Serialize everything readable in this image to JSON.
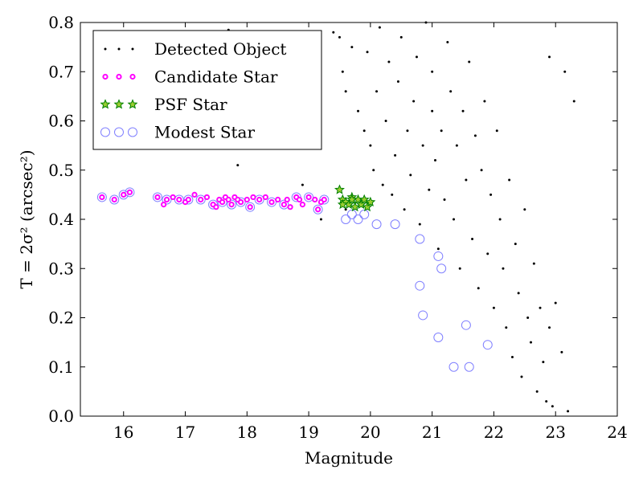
{
  "chart_data": {
    "type": "scatter",
    "xlabel": "Magnitude",
    "ylabel": "T = 2σ² (arcsec²)",
    "xlim": [
      15.3,
      24.0
    ],
    "ylim": [
      0.0,
      0.8
    ],
    "x_ticks": [
      "16",
      "17",
      "18",
      "19",
      "20",
      "21",
      "22",
      "23",
      "24"
    ],
    "y_ticks": [
      "0.0",
      "0.1",
      "0.2",
      "0.3",
      "0.4",
      "0.5",
      "0.6",
      "0.7",
      "0.8"
    ],
    "legend_position": "top-left",
    "grid": false,
    "series": [
      {
        "name": "Detected Object",
        "marker": "dot",
        "color": "#000000",
        "count_note": "dense field of faint objects spanning magnitude ~19.3–23.3, T ~0.0–0.8",
        "points": [
          [
            17.7,
            0.785
          ],
          [
            17.85,
            0.51
          ],
          [
            18.9,
            0.47
          ],
          [
            19.2,
            0.4
          ],
          [
            19.6,
            0.42
          ],
          [
            19.4,
            0.78
          ],
          [
            19.5,
            0.77
          ],
          [
            19.55,
            0.7
          ],
          [
            19.6,
            0.66
          ],
          [
            19.7,
            0.75
          ],
          [
            19.8,
            0.62
          ],
          [
            19.9,
            0.58
          ],
          [
            19.95,
            0.74
          ],
          [
            20.0,
            0.55
          ],
          [
            20.05,
            0.5
          ],
          [
            20.1,
            0.66
          ],
          [
            20.15,
            0.79
          ],
          [
            20.2,
            0.47
          ],
          [
            20.25,
            0.6
          ],
          [
            20.3,
            0.72
          ],
          [
            20.35,
            0.45
          ],
          [
            20.4,
            0.53
          ],
          [
            20.45,
            0.68
          ],
          [
            20.5,
            0.77
          ],
          [
            20.55,
            0.42
          ],
          [
            20.6,
            0.58
          ],
          [
            20.65,
            0.49
          ],
          [
            20.7,
            0.64
          ],
          [
            20.75,
            0.73
          ],
          [
            20.8,
            0.39
          ],
          [
            20.85,
            0.55
          ],
          [
            20.9,
            0.8
          ],
          [
            20.95,
            0.46
          ],
          [
            21.0,
            0.62
          ],
          [
            21.0,
            0.7
          ],
          [
            21.05,
            0.52
          ],
          [
            21.1,
            0.34
          ],
          [
            21.15,
            0.58
          ],
          [
            21.2,
            0.44
          ],
          [
            21.25,
            0.76
          ],
          [
            21.3,
            0.66
          ],
          [
            21.35,
            0.4
          ],
          [
            21.4,
            0.55
          ],
          [
            21.45,
            0.3
          ],
          [
            21.5,
            0.62
          ],
          [
            21.55,
            0.48
          ],
          [
            21.6,
            0.72
          ],
          [
            21.65,
            0.36
          ],
          [
            21.7,
            0.57
          ],
          [
            21.75,
            0.26
          ],
          [
            21.8,
            0.5
          ],
          [
            21.85,
            0.64
          ],
          [
            21.9,
            0.33
          ],
          [
            21.95,
            0.45
          ],
          [
            22.0,
            0.22
          ],
          [
            22.05,
            0.58
          ],
          [
            22.1,
            0.4
          ],
          [
            22.15,
            0.3
          ],
          [
            22.2,
            0.18
          ],
          [
            22.25,
            0.48
          ],
          [
            22.3,
            0.12
          ],
          [
            22.35,
            0.35
          ],
          [
            22.4,
            0.25
          ],
          [
            22.45,
            0.08
          ],
          [
            22.5,
            0.42
          ],
          [
            22.55,
            0.2
          ],
          [
            22.6,
            0.15
          ],
          [
            22.65,
            0.31
          ],
          [
            22.7,
            0.05
          ],
          [
            22.75,
            0.22
          ],
          [
            22.8,
            0.11
          ],
          [
            22.85,
            0.03
          ],
          [
            22.9,
            0.18
          ],
          [
            22.95,
            0.02
          ],
          [
            23.0,
            0.23
          ],
          [
            23.1,
            0.13
          ],
          [
            23.15,
            0.7
          ],
          [
            23.2,
            0.01
          ],
          [
            23.3,
            0.64
          ],
          [
            22.9,
            0.73
          ]
        ]
      },
      {
        "name": "Candidate Star",
        "marker": "circle-small",
        "color": "#ff00ff",
        "points": [
          [
            15.65,
            0.445
          ],
          [
            15.85,
            0.44
          ],
          [
            16.0,
            0.45
          ],
          [
            16.1,
            0.455
          ],
          [
            16.55,
            0.445
          ],
          [
            16.65,
            0.43
          ],
          [
            16.7,
            0.44
          ],
          [
            16.8,
            0.445
          ],
          [
            16.9,
            0.44
          ],
          [
            17.0,
            0.435
          ],
          [
            17.05,
            0.44
          ],
          [
            17.15,
            0.45
          ],
          [
            17.25,
            0.44
          ],
          [
            17.35,
            0.445
          ],
          [
            17.45,
            0.43
          ],
          [
            17.5,
            0.425
          ],
          [
            17.55,
            0.44
          ],
          [
            17.6,
            0.435
          ],
          [
            17.65,
            0.445
          ],
          [
            17.7,
            0.44
          ],
          [
            17.75,
            0.43
          ],
          [
            17.8,
            0.445
          ],
          [
            17.85,
            0.44
          ],
          [
            17.9,
            0.435
          ],
          [
            18.0,
            0.44
          ],
          [
            18.05,
            0.425
          ],
          [
            18.1,
            0.445
          ],
          [
            18.2,
            0.44
          ],
          [
            18.3,
            0.445
          ],
          [
            18.4,
            0.435
          ],
          [
            18.5,
            0.44
          ],
          [
            18.6,
            0.43
          ],
          [
            18.65,
            0.44
          ],
          [
            18.7,
            0.425
          ],
          [
            18.8,
            0.445
          ],
          [
            18.85,
            0.44
          ],
          [
            18.9,
            0.43
          ],
          [
            19.0,
            0.445
          ],
          [
            19.1,
            0.44
          ],
          [
            19.15,
            0.42
          ],
          [
            19.2,
            0.435
          ],
          [
            19.25,
            0.44
          ]
        ]
      },
      {
        "name": "PSF Star",
        "marker": "star",
        "color": "#008000",
        "points": [
          [
            19.5,
            0.46
          ],
          [
            19.55,
            0.44
          ],
          [
            19.6,
            0.435
          ],
          [
            19.65,
            0.43
          ],
          [
            19.7,
            0.445
          ],
          [
            19.75,
            0.425
          ],
          [
            19.8,
            0.44
          ],
          [
            19.85,
            0.43
          ],
          [
            19.9,
            0.44
          ],
          [
            19.95,
            0.425
          ],
          [
            20.0,
            0.435
          ],
          [
            19.55,
            0.43
          ],
          [
            19.7,
            0.44
          ]
        ]
      },
      {
        "name": "Modest Star",
        "marker": "circle-open",
        "color": "#8080ff",
        "points": [
          [
            15.65,
            0.445
          ],
          [
            15.85,
            0.44
          ],
          [
            16.0,
            0.45
          ],
          [
            16.1,
            0.455
          ],
          [
            16.55,
            0.445
          ],
          [
            16.7,
            0.44
          ],
          [
            16.9,
            0.44
          ],
          [
            17.05,
            0.44
          ],
          [
            17.25,
            0.44
          ],
          [
            17.45,
            0.43
          ],
          [
            17.6,
            0.435
          ],
          [
            17.75,
            0.43
          ],
          [
            17.9,
            0.435
          ],
          [
            18.05,
            0.425
          ],
          [
            18.2,
            0.44
          ],
          [
            18.4,
            0.435
          ],
          [
            18.6,
            0.43
          ],
          [
            18.8,
            0.445
          ],
          [
            19.0,
            0.445
          ],
          [
            19.15,
            0.42
          ],
          [
            19.25,
            0.44
          ],
          [
            19.6,
            0.4
          ],
          [
            19.7,
            0.41
          ],
          [
            19.8,
            0.4
          ],
          [
            19.9,
            0.41
          ],
          [
            20.1,
            0.39
          ],
          [
            20.4,
            0.39
          ],
          [
            20.8,
            0.36
          ],
          [
            20.8,
            0.265
          ],
          [
            20.85,
            0.205
          ],
          [
            21.1,
            0.325
          ],
          [
            21.15,
            0.3
          ],
          [
            21.1,
            0.16
          ],
          [
            21.35,
            0.1
          ],
          [
            21.55,
            0.185
          ],
          [
            21.6,
            0.1
          ],
          [
            21.9,
            0.145
          ]
        ]
      }
    ]
  }
}
